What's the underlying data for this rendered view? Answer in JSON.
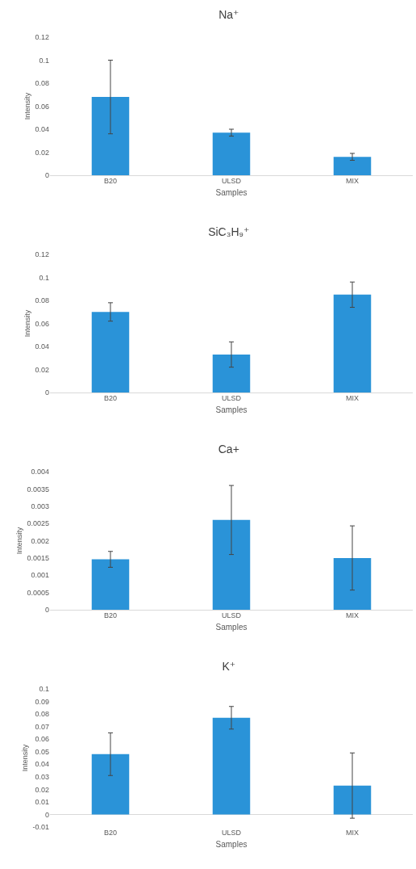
{
  "chart_data": [
    {
      "type": "bar",
      "title": "Na⁺",
      "xlabel": "Samples",
      "ylabel": "Intensity",
      "categories": [
        "B20",
        "ULSD",
        "MIX"
      ],
      "values": [
        0.068,
        0.037,
        0.016
      ],
      "errors": [
        0.032,
        0.003,
        0.003
      ],
      "color": "#2a93d8",
      "ylim": [
        0,
        0.12
      ],
      "yticks": [
        0,
        0.02,
        0.04,
        0.06,
        0.08,
        0.1,
        0.12
      ],
      "grid": false
    },
    {
      "type": "bar",
      "title": "SiC₃H₉⁺",
      "xlabel": "Samples",
      "ylabel": "Intensity",
      "categories": [
        "B20",
        "ULSD",
        "MIX"
      ],
      "values": [
        0.07,
        0.033,
        0.085
      ],
      "errors": [
        0.008,
        0.011,
        0.011
      ],
      "color": "#2a93d8",
      "ylim": [
        0,
        0.12
      ],
      "yticks": [
        0,
        0.02,
        0.04,
        0.06,
        0.08,
        0.1,
        0.12
      ],
      "grid": false
    },
    {
      "type": "bar",
      "title": "Ca+",
      "xlabel": "Samples",
      "ylabel": "Intensity",
      "categories": [
        "B20",
        "ULSD",
        "MIX"
      ],
      "values": [
        0.00146,
        0.0026,
        0.0015
      ],
      "errors": [
        0.00023,
        0.001,
        0.00093
      ],
      "color": "#2a93d8",
      "ylim": [
        0,
        0.004
      ],
      "yticks": [
        0,
        0.0005,
        0.001,
        0.0015,
        0.002,
        0.0025,
        0.003,
        0.0035,
        0.004
      ],
      "grid": false
    },
    {
      "type": "bar",
      "title": "K⁺",
      "xlabel": "Samples",
      "ylabel": "Intensity",
      "categories": [
        "B20",
        "ULSD",
        "MIX"
      ],
      "values": [
        0.048,
        0.077,
        0.023
      ],
      "errors": [
        0.017,
        0.009,
        0.026
      ],
      "color": "#2a93d8",
      "ylim": [
        -0.01,
        0.1
      ],
      "yticks": [
        -0.01,
        0,
        0.01,
        0.02,
        0.03,
        0.04,
        0.05,
        0.06,
        0.07,
        0.08,
        0.09,
        0.1
      ],
      "grid": false
    }
  ]
}
